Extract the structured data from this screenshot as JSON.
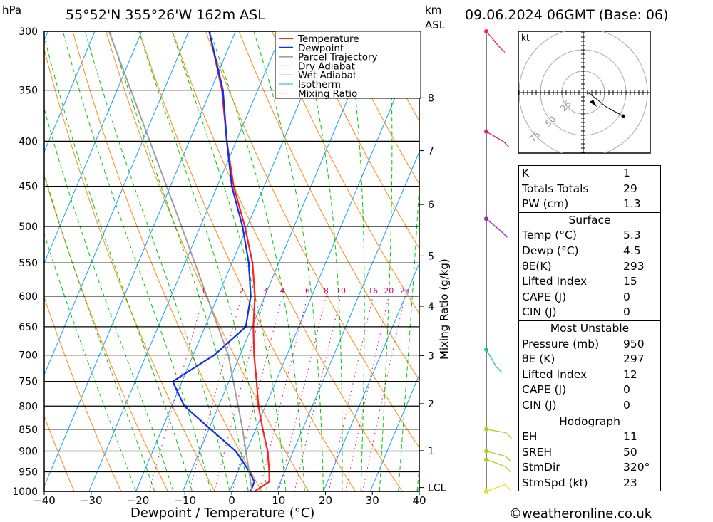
{
  "header": {
    "pressure_unit": "hPa",
    "location": "55°52'N  355°26'W  162m  ASL",
    "km_unit": "km",
    "asl": "ASL",
    "datetime": "09.06.2024  06GMT  (Base: 06)"
  },
  "chart_data": {
    "type": "line",
    "title": "55°52'N 355°26'W 162m ASL — 09.06.2024 06GMT (Base: 06)",
    "xlabel": "Dewpoint / Temperature (°C)",
    "ylabel": "hPa",
    "y2label": "Mixing Ratio (g/kg)",
    "xlim": [
      -40,
      40
    ],
    "ylim": [
      1000,
      300
    ],
    "x_ticks": [
      "−40",
      "−30",
      "−20",
      "−10",
      "0",
      "10",
      "20",
      "30",
      "40"
    ],
    "x_tick_values": [
      -40,
      -30,
      -20,
      -10,
      0,
      10,
      20,
      30,
      40
    ],
    "pressure_levels": [
      300,
      350,
      400,
      450,
      500,
      550,
      600,
      650,
      700,
      750,
      800,
      850,
      900,
      950,
      1000
    ],
    "km_ticks": [
      {
        "label": "8",
        "p": 357
      },
      {
        "label": "7",
        "p": 410
      },
      {
        "label": "6",
        "p": 472
      },
      {
        "label": "5",
        "p": 540
      },
      {
        "label": "4",
        "p": 616
      },
      {
        "label": "3",
        "p": 701
      },
      {
        "label": "2",
        "p": 795
      },
      {
        "label": "1",
        "p": 899
      },
      {
        "label": "LCL",
        "p": 990
      }
    ],
    "mixing_ratio_labels": [
      "1",
      "2",
      "3",
      "4",
      "6",
      "8",
      "10",
      "16",
      "20",
      "25"
    ],
    "mixing_ratio_values": [
      1,
      2,
      3,
      4,
      6,
      8,
      10,
      16,
      20,
      25
    ],
    "legend": [
      "Temperature",
      "Dewpoint",
      "Parcel Trajectory",
      "Dry Adiabat",
      "Wet Adiabat",
      "Isotherm",
      "Mixing Ratio"
    ],
    "legend_position": "top-right",
    "series": [
      {
        "name": "Temperature",
        "color": "#ff2020",
        "p": [
          1000,
          975,
          950,
          900,
          850,
          800,
          750,
          700,
          650,
          600,
          550,
          500,
          450,
          400,
          350,
          300
        ],
        "t": [
          5.3,
          7.6,
          6.7,
          4.5,
          1.5,
          -1.5,
          -4.1,
          -7.0,
          -9.7,
          -12.1,
          -15.6,
          -20.5,
          -26.5,
          -32,
          -37.6,
          -45.6
        ]
      },
      {
        "name": "Dewpoint",
        "color": "#1030f0",
        "p": [
          1000,
          975,
          950,
          900,
          850,
          800,
          750,
          700,
          650,
          600,
          550,
          500,
          450,
          400,
          350,
          300
        ],
        "t": [
          4.5,
          4.4,
          2.5,
          -2.3,
          -9.6,
          -17.3,
          -22,
          -15.5,
          -11.3,
          -13,
          -16.4,
          -21,
          -26.9,
          -32,
          -37.4,
          -45.6
        ]
      },
      {
        "name": "Parcel Trajectory",
        "color": "#a0a0a0",
        "p": [
          1000,
          850,
          700,
          500,
          300
        ],
        "t": [
          4.8,
          -2.8,
          -12.5,
          -34,
          -67
        ]
      }
    ]
  },
  "winds": [
    {
      "p": 300,
      "color": "#ff2050",
      "dir": 320
    },
    {
      "p": 390,
      "color": "#e0206a",
      "dir": 300
    },
    {
      "p": 490,
      "color": "#a020c0",
      "dir": 310
    },
    {
      "p": 690,
      "color": "#20c0a0",
      "dir": 330
    },
    {
      "p": 850,
      "color": "#b0d020",
      "dir": 280
    },
    {
      "p": 900,
      "color": "#b0d020",
      "dir": 285
    },
    {
      "p": 920,
      "color": "#b0d020",
      "dir": 290
    },
    {
      "p": 1000,
      "color": "#e0e020",
      "dir": 250
    }
  ],
  "hodograph": {
    "unit": "kt",
    "rings": [
      "25",
      "50",
      "75"
    ]
  },
  "indices": {
    "top": [
      {
        "k": "K",
        "v": "1"
      },
      {
        "k": "Totals Totals",
        "v": "29"
      },
      {
        "k": "PW (cm)",
        "v": "1.3"
      }
    ],
    "surface": {
      "title": "Surface",
      "rows": [
        {
          "k": "Temp (°C)",
          "v": "5.3"
        },
        {
          "k": "Dewp (°C)",
          "v": "4.5"
        },
        {
          "k": "θE(K)",
          "v": "293"
        },
        {
          "k": "Lifted Index",
          "v": "15"
        },
        {
          "k": "CAPE (J)",
          "v": "0"
        },
        {
          "k": "CIN (J)",
          "v": "0"
        }
      ]
    },
    "unstable": {
      "title": "Most Unstable",
      "rows": [
        {
          "k": "Pressure (mb)",
          "v": "950"
        },
        {
          "k": "θE (K)",
          "v": "297"
        },
        {
          "k": "Lifted Index",
          "v": "12"
        },
        {
          "k": "CAPE (J)",
          "v": "0"
        },
        {
          "k": "CIN (J)",
          "v": "0"
        }
      ]
    },
    "hodo": {
      "title": "Hodograph",
      "rows": [
        {
          "k": "EH",
          "v": "11"
        },
        {
          "k": "SREH",
          "v": "50"
        },
        {
          "k": "StmDir",
          "v": "320°"
        },
        {
          "k": "StmSpd (kt)",
          "v": "23"
        }
      ]
    }
  },
  "footer": {
    "copyright": "©weatheronline.co.uk"
  }
}
